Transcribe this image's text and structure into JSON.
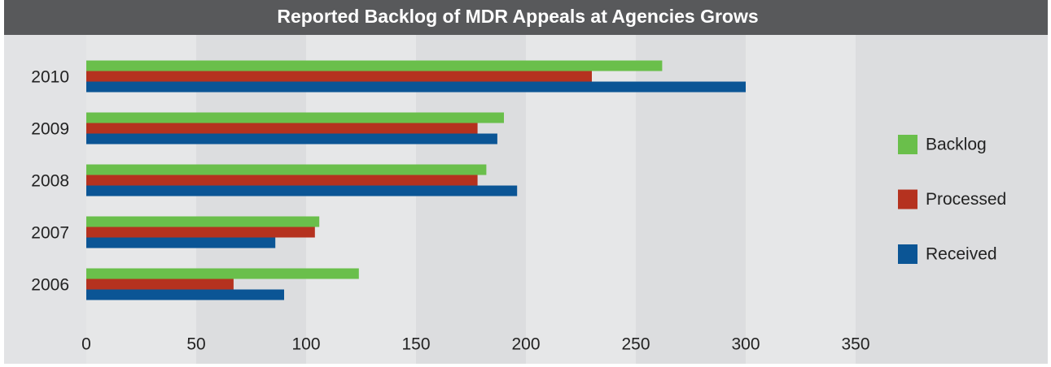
{
  "chart_data": {
    "type": "barh",
    "title": "Reported Backlog of MDR Appeals at Agencies Grows",
    "categories": [
      "2006",
      "2007",
      "2008",
      "2009",
      "2010"
    ],
    "series": [
      {
        "name": "Backlog",
        "color": "#6abf4b",
        "values": [
          124,
          106,
          182,
          190,
          262
        ]
      },
      {
        "name": "Processed",
        "color": "#b5321f",
        "values": [
          67,
          104,
          178,
          178,
          230
        ]
      },
      {
        "name": "Received",
        "color": "#0b5595",
        "values": [
          90,
          86,
          196,
          187,
          300
        ]
      }
    ],
    "xlim": [
      0,
      350
    ],
    "xticks": [
      0,
      50,
      100,
      150,
      200,
      250,
      300,
      350
    ],
    "legend": "right"
  }
}
